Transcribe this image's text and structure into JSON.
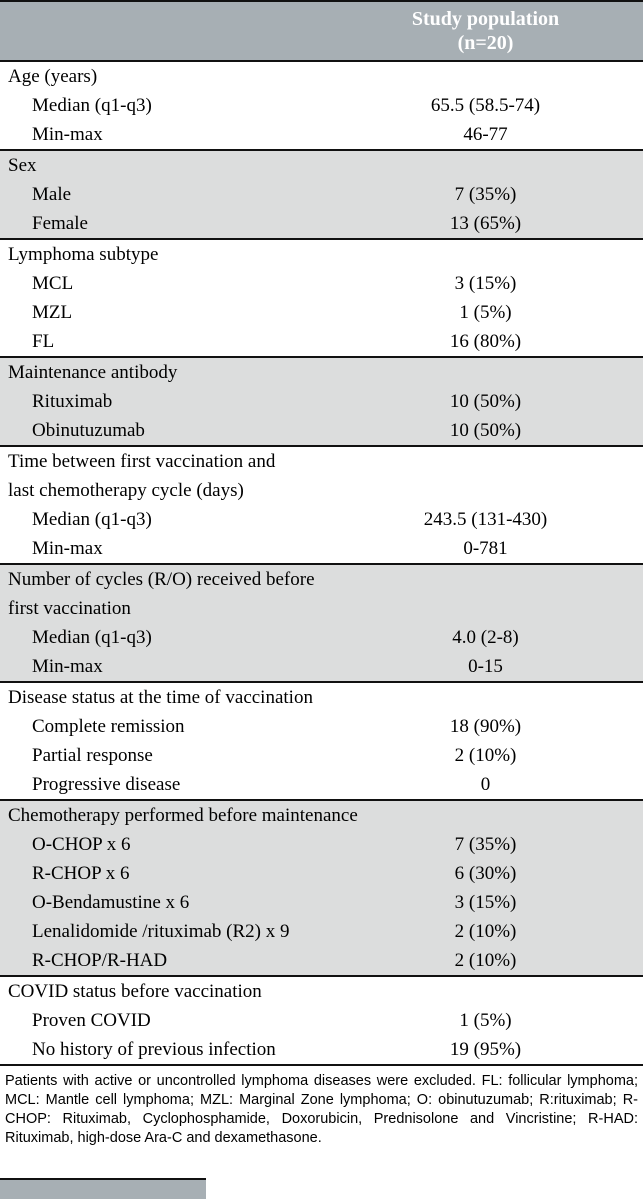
{
  "page": {
    "header": {
      "study_population": "Study population\n(n=20)"
    },
    "sections": [
      {
        "title": "Age (years)",
        "shaded": false,
        "rows": [
          {
            "label": "Median (q1-q3)",
            "value": "65.5 (58.5-74)"
          },
          {
            "label": "Min-max",
            "value": "46-77"
          }
        ]
      },
      {
        "title": "Sex",
        "shaded": true,
        "rows": [
          {
            "label": "Male",
            "value": "7 (35%)"
          },
          {
            "label": "Female",
            "value": "13 (65%)"
          }
        ]
      },
      {
        "title": "Lymphoma subtype",
        "shaded": false,
        "rows": [
          {
            "label": "MCL",
            "value": "3 (15%)"
          },
          {
            "label": "MZL",
            "value": "1 (5%)"
          },
          {
            "label": "FL",
            "value": "16 (80%)"
          }
        ]
      },
      {
        "title": "Maintenance antibody",
        "shaded": true,
        "rows": [
          {
            "label": "Rituximab",
            "value": "10 (50%)"
          },
          {
            "label": "Obinutuzumab",
            "value": "10 (50%)"
          }
        ]
      },
      {
        "title": "Time between first vaccination and\nlast chemotherapy cycle (days)",
        "shaded": false,
        "rows": [
          {
            "label": "Median (q1-q3)",
            "value": "243.5 (131-430)"
          },
          {
            "label": "Min-max",
            "value": "0-781"
          }
        ]
      },
      {
        "title": "Number of cycles (R/O) received before\nfirst vaccination",
        "shaded": true,
        "rows": [
          {
            "label": "Median (q1-q3)",
            "value": "4.0 (2-8)"
          },
          {
            "label": "Min-max",
            "value": "0-15"
          }
        ]
      },
      {
        "title": "Disease status at the time of vaccination",
        "shaded": false,
        "rows": [
          {
            "label": "Complete remission",
            "value": "18 (90%)"
          },
          {
            "label": "Partial response",
            "value": "2 (10%)"
          },
          {
            "label": "Progressive disease",
            "value": "0"
          }
        ]
      },
      {
        "title": "Chemotherapy performed before maintenance",
        "shaded": true,
        "rows": [
          {
            "label": "O-CHOP x 6",
            "value": "7 (35%)"
          },
          {
            "label": "R-CHOP x 6",
            "value": "6 (30%)"
          },
          {
            "label": "O-Bendamustine x 6",
            "value": "3 (15%)"
          },
          {
            "label": "Lenalidomide /rituximab (R2) x 9",
            "value": "2 (10%)"
          },
          {
            "label": "R-CHOP/R-HAD",
            "value": "2 (10%)"
          }
        ]
      },
      {
        "title": "COVID status before vaccination",
        "shaded": false,
        "rows": [
          {
            "label": "Proven COVID",
            "value": "1 (5%)"
          },
          {
            "label": "No history of previous infection",
            "value": "19 (95%)"
          }
        ]
      }
    ],
    "footnote": "Patients with active or uncontrolled lymphoma diseases were excluded. FL: follicular lymphoma; MCL: Mantle cell lymphoma; MZL: Marginal Zone lymphoma; O: obinutuzumab; R:rituximab; R-CHOP: Rituximab, Cyclophosphamide, Doxorubicin, Prednisolone and Vincristine; R-HAD: Rituximab, high-dose Ara-C and dexamethasone.",
    "colors": {
      "header_bg": "#a7afb4",
      "shaded_bg": "#dcdddd",
      "rule": "#111111"
    }
  }
}
